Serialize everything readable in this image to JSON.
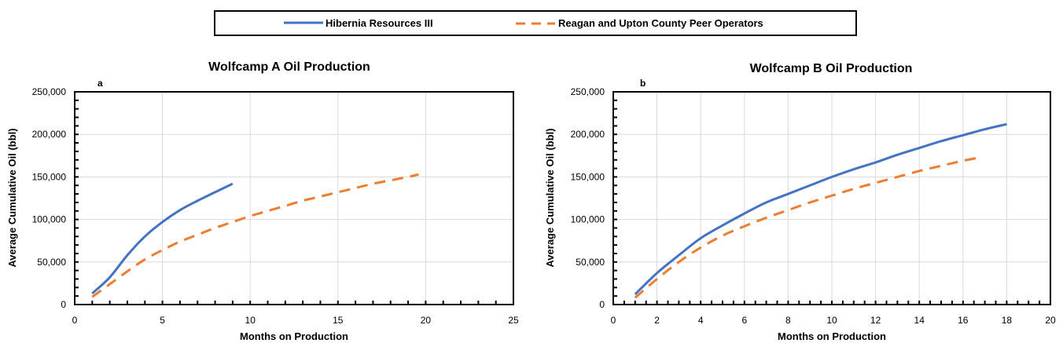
{
  "colors": {
    "series_1": "#4472C4",
    "series_2": "#ED7D31",
    "grid": "#D9D9D9",
    "frame": "#000000"
  },
  "legend": {
    "items": [
      {
        "label": "Hibernia Resources III",
        "style": "solid",
        "color": "#4472C4"
      },
      {
        "label": "Reagan and Upton County Peer Operators",
        "style": "dashed",
        "color": "#ED7D31"
      }
    ],
    "placement": "top-center"
  },
  "chart_data": [
    {
      "type": "line",
      "panel_letter": "a",
      "title": "Wolfcamp A Oil Production",
      "xlabel": "Months on Production",
      "ylabel": "Average Cumulative Oil (bbl)",
      "xlim": [
        0,
        25
      ],
      "ylim": [
        0,
        250000
      ],
      "xticks": [
        0,
        5,
        10,
        15,
        20,
        25
      ],
      "yticks": [
        0,
        50000,
        100000,
        150000,
        200000,
        250000
      ],
      "xtick_labels": [
        "0",
        "5",
        "10",
        "15",
        "20",
        "25"
      ],
      "ytick_labels": [
        "0",
        "50,000",
        "100,000",
        "150,000",
        "200,000",
        "250,000"
      ],
      "grid": true,
      "series": [
        {
          "name": "Hibernia Resources III",
          "style": "solid",
          "x": [
            1,
            2,
            3,
            4,
            5,
            6,
            7,
            8,
            9
          ],
          "y": [
            13000,
            32000,
            58000,
            80000,
            97000,
            111000,
            122000,
            132000,
            142000
          ]
        },
        {
          "name": "Reagan and Upton County Peer Operators",
          "style": "dashed",
          "x": [
            1,
            2,
            3,
            4,
            5,
            6,
            7,
            8,
            9,
            10,
            11,
            12,
            13,
            14,
            15,
            16,
            17,
            18,
            19,
            19.6
          ],
          "y": [
            9000,
            24000,
            39000,
            53000,
            64000,
            74000,
            82000,
            90000,
            97000,
            104000,
            110000,
            116000,
            122000,
            127000,
            132000,
            137000,
            142000,
            146000,
            150000,
            153000
          ]
        }
      ]
    },
    {
      "type": "line",
      "panel_letter": "b",
      "title": "Wolfcamp B Oil Production",
      "xlabel": "Months on Production",
      "ylabel": "Average Cumulative Oil (bbl)",
      "xlim": [
        0,
        20
      ],
      "ylim": [
        0,
        250000
      ],
      "xticks": [
        0,
        2,
        4,
        6,
        8,
        10,
        12,
        14,
        16,
        18,
        20
      ],
      "yticks": [
        0,
        50000,
        100000,
        150000,
        200000,
        250000
      ],
      "xtick_labels": [
        "0",
        "2",
        "4",
        "6",
        "8",
        "10",
        "12",
        "14",
        "16",
        "18",
        "20"
      ],
      "ytick_labels": [
        "0",
        "50,000",
        "100,000",
        "150,000",
        "200,000",
        "250,000"
      ],
      "grid": true,
      "series": [
        {
          "name": "Hibernia Resources III",
          "style": "solid",
          "x": [
            1,
            2,
            3,
            4,
            5,
            6,
            7,
            8,
            9,
            10,
            11,
            12,
            13,
            14,
            15,
            16,
            17,
            18
          ],
          "y": [
            12000,
            37000,
            58000,
            78000,
            93000,
            107000,
            120000,
            130000,
            140000,
            150000,
            159000,
            167000,
            176000,
            184000,
            192000,
            199000,
            206000,
            212000
          ]
        },
        {
          "name": "Reagan and Upton County Peer Operators",
          "style": "dashed",
          "x": [
            1,
            2,
            3,
            4,
            5,
            6,
            7,
            8,
            9,
            10,
            11,
            12,
            13,
            14,
            15,
            16,
            16.8
          ],
          "y": [
            8000,
            30000,
            50000,
            67000,
            81000,
            92000,
            102000,
            111000,
            120000,
            128000,
            136000,
            143000,
            150000,
            157000,
            163000,
            169000,
            173000
          ]
        }
      ]
    }
  ]
}
